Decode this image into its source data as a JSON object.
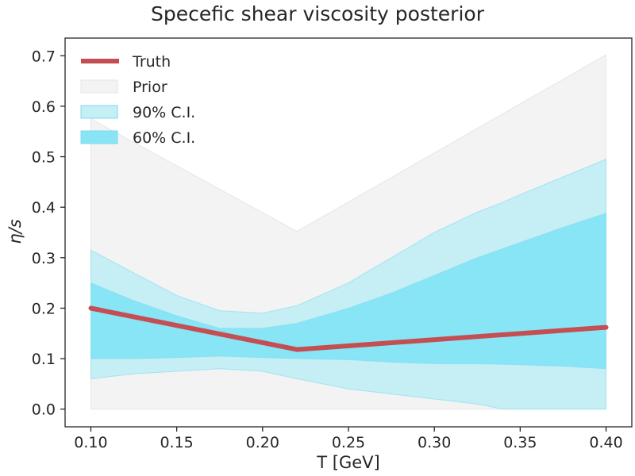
{
  "chart_data": {
    "type": "area",
    "title": "Specefic shear viscosity posterior",
    "xlabel": "T [GeV]",
    "ylabel": "η/s",
    "xlim": [
      0.085,
      0.415
    ],
    "ylim": [
      -0.035,
      0.735
    ],
    "xticks": [
      "0.10",
      "0.15",
      "0.20",
      "0.25",
      "0.30",
      "0.35",
      "0.40"
    ],
    "yticks": [
      "0.0",
      "0.1",
      "0.2",
      "0.3",
      "0.4",
      "0.5",
      "0.6",
      "0.7"
    ],
    "grid": false,
    "legend_position": "upper-left",
    "legend": [
      "Truth",
      "Prior",
      "90% C.I.",
      "60% C.I."
    ],
    "colors": {
      "truth": "#c44e52",
      "prior": "#f3f3f3",
      "ci90": "#c6eef5",
      "ci60": "#87e5f5",
      "ci_edge": "#7fdaf0"
    },
    "series": [
      {
        "name": "Truth",
        "kind": "line",
        "x": [
          0.1,
          0.22,
          0.4
        ],
        "y": [
          0.2,
          0.118,
          0.162
        ]
      },
      {
        "name": "Prior",
        "kind": "band",
        "x": [
          0.1,
          0.22,
          0.4
        ],
        "lower": [
          0.0,
          0.0,
          0.0
        ],
        "upper": [
          0.575,
          0.352,
          0.702
        ]
      },
      {
        "name": "90% C.I.",
        "kind": "band",
        "x": [
          0.1,
          0.125,
          0.15,
          0.175,
          0.2,
          0.22,
          0.25,
          0.275,
          0.3,
          0.325,
          0.34,
          0.35,
          0.375,
          0.4
        ],
        "lower": [
          0.06,
          0.07,
          0.075,
          0.08,
          0.075,
          0.06,
          0.04,
          0.03,
          0.02,
          0.01,
          0.0,
          0.0,
          0.0,
          0.0
        ],
        "upper": [
          0.315,
          0.27,
          0.225,
          0.195,
          0.19,
          0.205,
          0.25,
          0.3,
          0.35,
          0.39,
          0.41,
          0.425,
          0.46,
          0.495
        ]
      },
      {
        "name": "60% C.I.",
        "kind": "band",
        "x": [
          0.1,
          0.125,
          0.15,
          0.175,
          0.2,
          0.22,
          0.25,
          0.275,
          0.3,
          0.325,
          0.35,
          0.375,
          0.4
        ],
        "lower": [
          0.1,
          0.1,
          0.102,
          0.105,
          0.102,
          0.1,
          0.098,
          0.093,
          0.09,
          0.09,
          0.088,
          0.085,
          0.08
        ],
        "upper": [
          0.25,
          0.215,
          0.185,
          0.16,
          0.16,
          0.17,
          0.2,
          0.23,
          0.265,
          0.3,
          0.33,
          0.36,
          0.388
        ]
      }
    ]
  }
}
